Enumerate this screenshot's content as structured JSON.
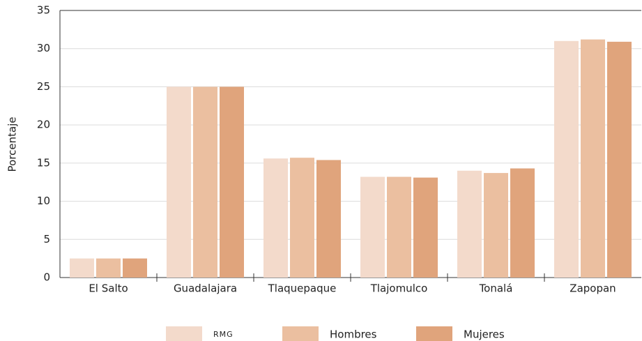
{
  "chart_data": {
    "type": "bar",
    "y_label": "Porcentaje",
    "categories": [
      "El Salto",
      "Guadalajara",
      "Tlaquepaque",
      "Tlajomulco",
      "Tonalá",
      "Zapopan"
    ],
    "series": [
      {
        "name": "RMG",
        "color": "#f3dacb",
        "values": [
          2.5,
          25,
          15.6,
          13.2,
          14.0,
          31.0
        ]
      },
      {
        "name": "Hombres",
        "color": "#ebbfa0",
        "values": [
          2.5,
          25,
          15.7,
          13.2,
          13.7,
          31.2
        ]
      },
      {
        "name": "Mujeres",
        "color": "#e0a47c",
        "values": [
          2.5,
          25,
          15.4,
          13.1,
          14.3,
          30.9
        ]
      }
    ],
    "ylim": [
      0,
      35
    ],
    "yticks": [
      0,
      5,
      10,
      15,
      20,
      25,
      30,
      35
    ],
    "grid": true,
    "legend": "bottom"
  }
}
